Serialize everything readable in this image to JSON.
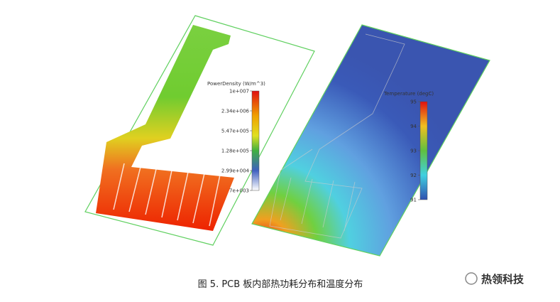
{
  "left_panel": {
    "legend_title": "PowerDensity (W/m^3)",
    "ticks": [
      "1e+007",
      "2.34e+006",
      "5.47e+005",
      "1.28e+005",
      "2.99e+004",
      "7e+003"
    ]
  },
  "right_panel": {
    "legend_title": "Temperature (degC)",
    "ticks": [
      "95",
      "94",
      "93",
      "92",
      "91"
    ]
  },
  "caption": "图 5. PCB 板内部热功耗分布和温度分布",
  "watermark": "热领科技"
}
